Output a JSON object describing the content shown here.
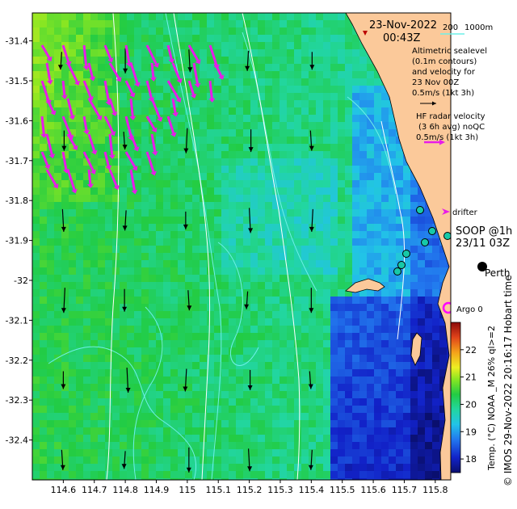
{
  "map": {
    "title_date": "23-Nov-2022",
    "title_time": "00:43Z",
    "x_ticks": [
      "114.6",
      "114.7",
      "114.8",
      "114.9",
      "115",
      "115.1",
      "115.2",
      "115.3",
      "115.4",
      "115.5",
      "115.6",
      "115.7",
      "115.8"
    ],
    "y_ticks": [
      "-31.4",
      "-31.5",
      "-31.6",
      "-31.7",
      "-31.8",
      "-31.9",
      "-32",
      "-32.1",
      "-32.2",
      "-32.3",
      "-32.4"
    ],
    "x_range": [
      114.5,
      115.85
    ],
    "y_range": [
      -32.5,
      -31.33
    ],
    "bathymetry_labels": [
      "200",
      "1000m"
    ],
    "altimetry_text": [
      "Altimetric sealevel",
      "(0.1m contours)",
      "and velocity for",
      "23 Nov 00Z",
      "0.5m/s (1kt 3h)"
    ],
    "hf_text": [
      "HF radar velocity",
      "(3 6h avg) noQC",
      "0.5m/s (1kt 3h)"
    ],
    "drifter_label": "drifter",
    "soop_label_1": "SOOP @1h",
    "soop_label_2": "23/11 03Z",
    "perth_label": "Perth",
    "argo_label": "Argo 0",
    "colorbar_ticks": [
      "18",
      "19",
      "20",
      "21",
      "22"
    ],
    "colorbar_range": [
      17.5,
      23
    ],
    "colorbar_label": "Temp. (°C) NOAA _M 26% ql>=2",
    "credit": "© IMOS 29-Nov-2022 20:16:17 Hobart time",
    "colors": {
      "land": "#fbc99a",
      "hf_vectors": "#e81ce8",
      "contours": "#6ff0e8",
      "isobaths": "#ffffff",
      "argo": "#ff00ff",
      "soop_fill": "#17c9a8"
    }
  }
}
